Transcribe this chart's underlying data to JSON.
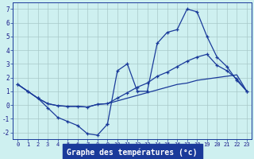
{
  "title": "Graphe des températures (°c)",
  "background_color": "#cef0f0",
  "grid_color": "#a8c8c8",
  "line_color": "#1a3a9a",
  "ylim": [
    -2.5,
    7.5
  ],
  "yticks": [
    -2,
    -1,
    0,
    1,
    2,
    3,
    4,
    5,
    6,
    7
  ],
  "hours": [
    0,
    1,
    2,
    3,
    4,
    5,
    6,
    7,
    8,
    9,
    10,
    11,
    12,
    13,
    14,
    15,
    16,
    17,
    18,
    19,
    20,
    21,
    22,
    23
  ],
  "jagged": [
    1.5,
    1.0,
    0.5,
    -0.2,
    -0.9,
    -1.2,
    -1.5,
    -2.1,
    -2.2,
    -1.4,
    2.5,
    3.0,
    1.0,
    1.0,
    4.5,
    5.3,
    5.5,
    7.0,
    6.8,
    5.0,
    3.5,
    2.8,
    1.8,
    1.0
  ],
  "line_straight1": [
    1.5,
    1.0,
    0.5,
    0.1,
    -0.05,
    -0.1,
    -0.1,
    -0.15,
    0.05,
    0.1,
    0.3,
    0.5,
    0.7,
    0.9,
    1.1,
    1.3,
    1.5,
    1.6,
    1.8,
    1.9,
    2.0,
    2.1,
    2.2,
    1.0
  ],
  "line_mid": [
    1.5,
    1.0,
    0.5,
    0.1,
    -0.05,
    -0.1,
    -0.1,
    -0.15,
    0.05,
    0.1,
    0.5,
    0.9,
    1.3,
    1.6,
    2.1,
    2.4,
    2.8,
    3.2,
    3.5,
    3.7,
    2.9,
    2.5,
    1.9,
    1.0
  ],
  "line_low": [
    1.5,
    1.0,
    0.5,
    -0.2,
    -0.9,
    -1.2,
    -1.5,
    -2.1,
    -2.2,
    -1.4,
    null,
    null,
    null,
    null,
    null,
    null,
    null,
    null,
    null,
    null,
    null,
    null,
    null,
    null
  ],
  "xlim": [
    -0.5,
    23.5
  ]
}
